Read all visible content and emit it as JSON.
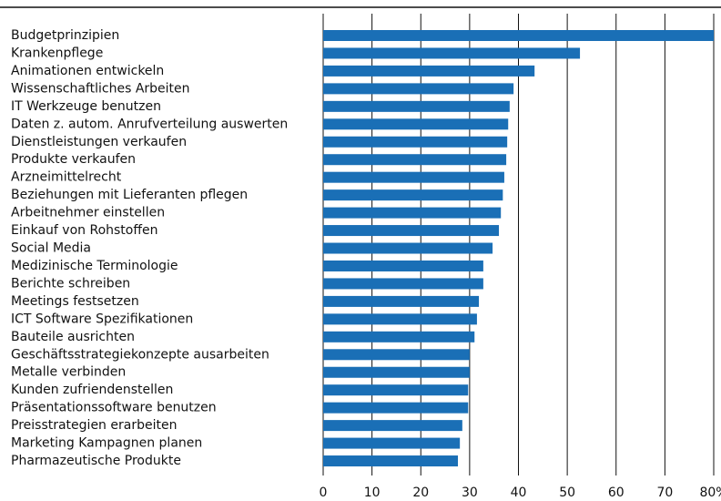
{
  "chart_data": {
    "type": "hbar",
    "color": "#1a6fb6",
    "grid": true,
    "categories": [
      "Budgetprinzipien",
      "Krankenpflege",
      "Animationen entwickeln",
      "Wissenschaftliches Arbeiten",
      "IT Werkzeuge benutzen",
      "Daten z. autom. Anrufverteilung auswerten",
      "Dienstleistungen verkaufen",
      "Produkte verkaufen",
      "Arzneimittelrecht",
      "Beziehungen mit Lieferanten pflegen",
      "Arbeitnehmer einstellen",
      "Einkauf von Rohstoffen",
      "Social Media",
      "Medizinische Terminologie",
      "Berichte schreiben",
      "Meetings festsetzen",
      "ICT Software Spezifikationen",
      "Bauteile ausrichten",
      "Geschäftsstrategiekonzepte ausarbeiten",
      "Metalle verbinden",
      "Kunden zufriendenstellen",
      "Präsentationssoftware benutzen",
      "Preisstrategien erarbeiten",
      "Marketing Kampagnen planen",
      "Pharmazeutische Produkte"
    ],
    "values": [
      80,
      52.6,
      43.3,
      39,
      38.2,
      37.9,
      37.7,
      37.5,
      37.1,
      36.8,
      36.4,
      36,
      34.7,
      32.8,
      32.8,
      31.9,
      31.5,
      31,
      30,
      30,
      29.7,
      29.7,
      28.5,
      28,
      27.6
    ],
    "xlim": [
      0,
      80
    ],
    "xticks": [
      0,
      10,
      20,
      30,
      40,
      50,
      60,
      70,
      {
        "value": 80,
        "label": "80%"
      }
    ]
  }
}
